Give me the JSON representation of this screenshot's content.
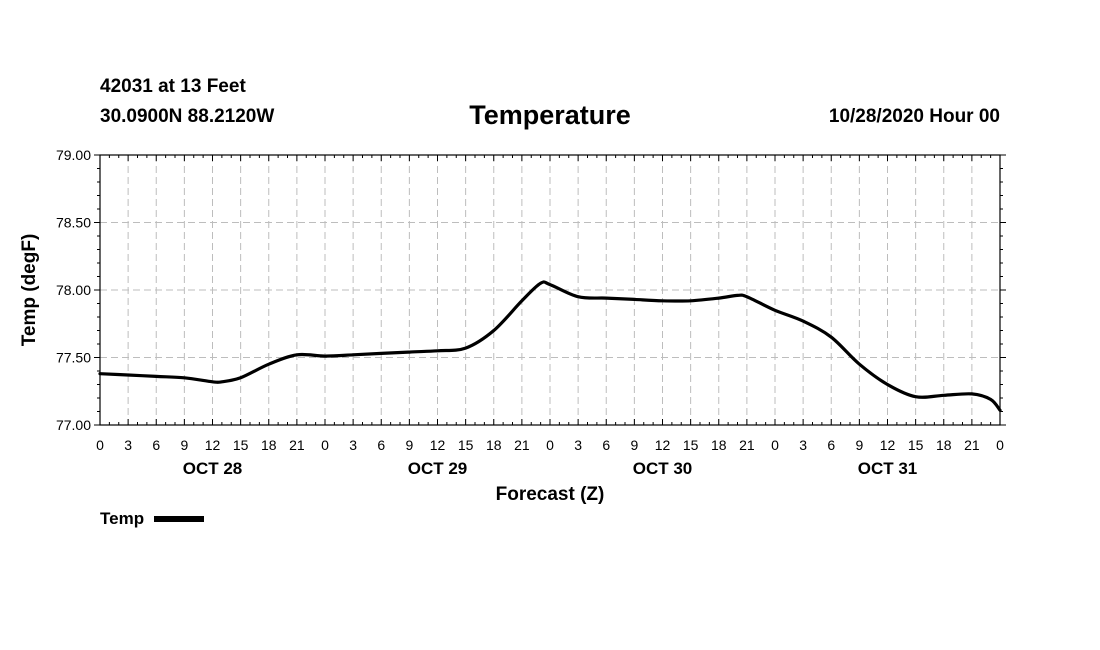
{
  "header": {
    "station": "42031 at 13 Feet",
    "coords": "30.0900N 88.2120W",
    "title": "Temperature",
    "run": "10/28/2020 Hour 00"
  },
  "chart_data": {
    "type": "line",
    "title": "Temperature",
    "xlabel": "Forecast (Z)",
    "ylabel": "Temp (degF)",
    "xlim": [
      0,
      96
    ],
    "ylim": [
      77.0,
      79.0
    ],
    "y_ticks": [
      "77.00",
      "77.50",
      "78.00",
      "78.50",
      "79.00"
    ],
    "hour_ticks": [
      "0",
      "3",
      "6",
      "9",
      "12",
      "15",
      "18",
      "21",
      "0",
      "3",
      "6",
      "9",
      "12",
      "15",
      "18",
      "21",
      "0",
      "3",
      "6",
      "9",
      "12",
      "15",
      "18",
      "21",
      "0",
      "3",
      "6",
      "9",
      "12",
      "15",
      "18",
      "21",
      "0"
    ],
    "day_labels": [
      {
        "label": "OCT 28",
        "hour": 12
      },
      {
        "label": "OCT 29",
        "hour": 36
      },
      {
        "label": "OCT 30",
        "hour": 60
      },
      {
        "label": "OCT 31",
        "hour": 84
      }
    ],
    "grid": true,
    "legend": "bottom-left",
    "series": [
      {
        "name": "Temp",
        "color": "#000000",
        "x": [
          0,
          3,
          6,
          9,
          12,
          13,
          15,
          18,
          21,
          24,
          27,
          30,
          33,
          36,
          39,
          42,
          45,
          47,
          48,
          51,
          54,
          57,
          60,
          63,
          66,
          68,
          69,
          72,
          75,
          78,
          81,
          84,
          87,
          90,
          93,
          95,
          96
        ],
        "y": [
          77.38,
          77.37,
          77.36,
          77.35,
          77.32,
          77.32,
          77.35,
          77.45,
          77.52,
          77.51,
          77.52,
          77.53,
          77.54,
          77.55,
          77.57,
          77.7,
          77.92,
          78.05,
          78.04,
          77.95,
          77.94,
          77.93,
          77.92,
          77.92,
          77.94,
          77.96,
          77.95,
          77.85,
          77.77,
          77.65,
          77.45,
          77.3,
          77.21,
          77.22,
          77.23,
          77.19,
          77.11
        ]
      }
    ]
  },
  "legend": {
    "label": "Temp"
  }
}
